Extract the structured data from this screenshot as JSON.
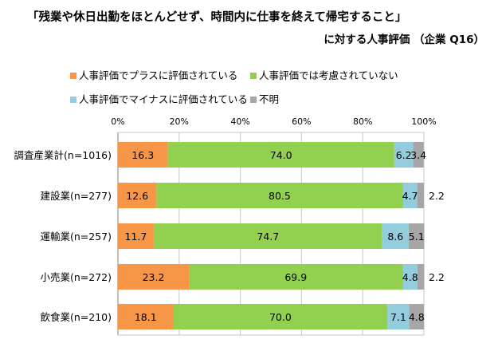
{
  "chart_data": {
    "type": "bar",
    "orientation": "horizontal",
    "stacked": true,
    "title": "「残業や休日出勤をほとんどせず、時間内に仕事を終えて帰宅すること」",
    "subtitle": "に対する人事評価 （企業 Q16）",
    "categories": [
      "調査産業計(n=1016)",
      "建設業(n=277)",
      "運輸業(n=257)",
      "小売業(n=272)",
      "飲食業(n=210)"
    ],
    "series": [
      {
        "name": "人事評価でプラスに評価されている",
        "color": "#F79646",
        "values": [
          16.3,
          12.6,
          11.7,
          23.2,
          18.1
        ]
      },
      {
        "name": "人事評価では考慮されていない",
        "color": "#92D050",
        "values": [
          74.0,
          80.5,
          74.7,
          69.9,
          70.0
        ]
      },
      {
        "name": "人事評価でマイナスに評価されている",
        "color": "#93CDDD",
        "values": [
          6.2,
          4.7,
          8.6,
          4.8,
          7.1
        ]
      },
      {
        "name": "不明",
        "color": "#A6A6A6",
        "values": [
          3.4,
          2.2,
          5.1,
          2.2,
          4.8
        ]
      }
    ],
    "xlim": [
      0,
      100
    ],
    "x_ticks": [
      "0%",
      "20%",
      "40%",
      "60%",
      "80%",
      "100%"
    ],
    "x_tick_values": [
      0,
      20,
      40,
      60,
      80,
      100
    ],
    "grid": true,
    "legend_position": "top",
    "data_labels": [
      [
        "16.3",
        "74.0",
        "6.2",
        "3.4"
      ],
      [
        "12.6",
        "80.5",
        "4.7",
        "2.2"
      ],
      [
        "11.7",
        "74.7",
        "8.6",
        "5.1"
      ],
      [
        "23.2",
        "69.9",
        "4.8",
        "2.2"
      ],
      [
        "18.1",
        "70.0",
        "7.1",
        "4.8"
      ]
    ]
  }
}
